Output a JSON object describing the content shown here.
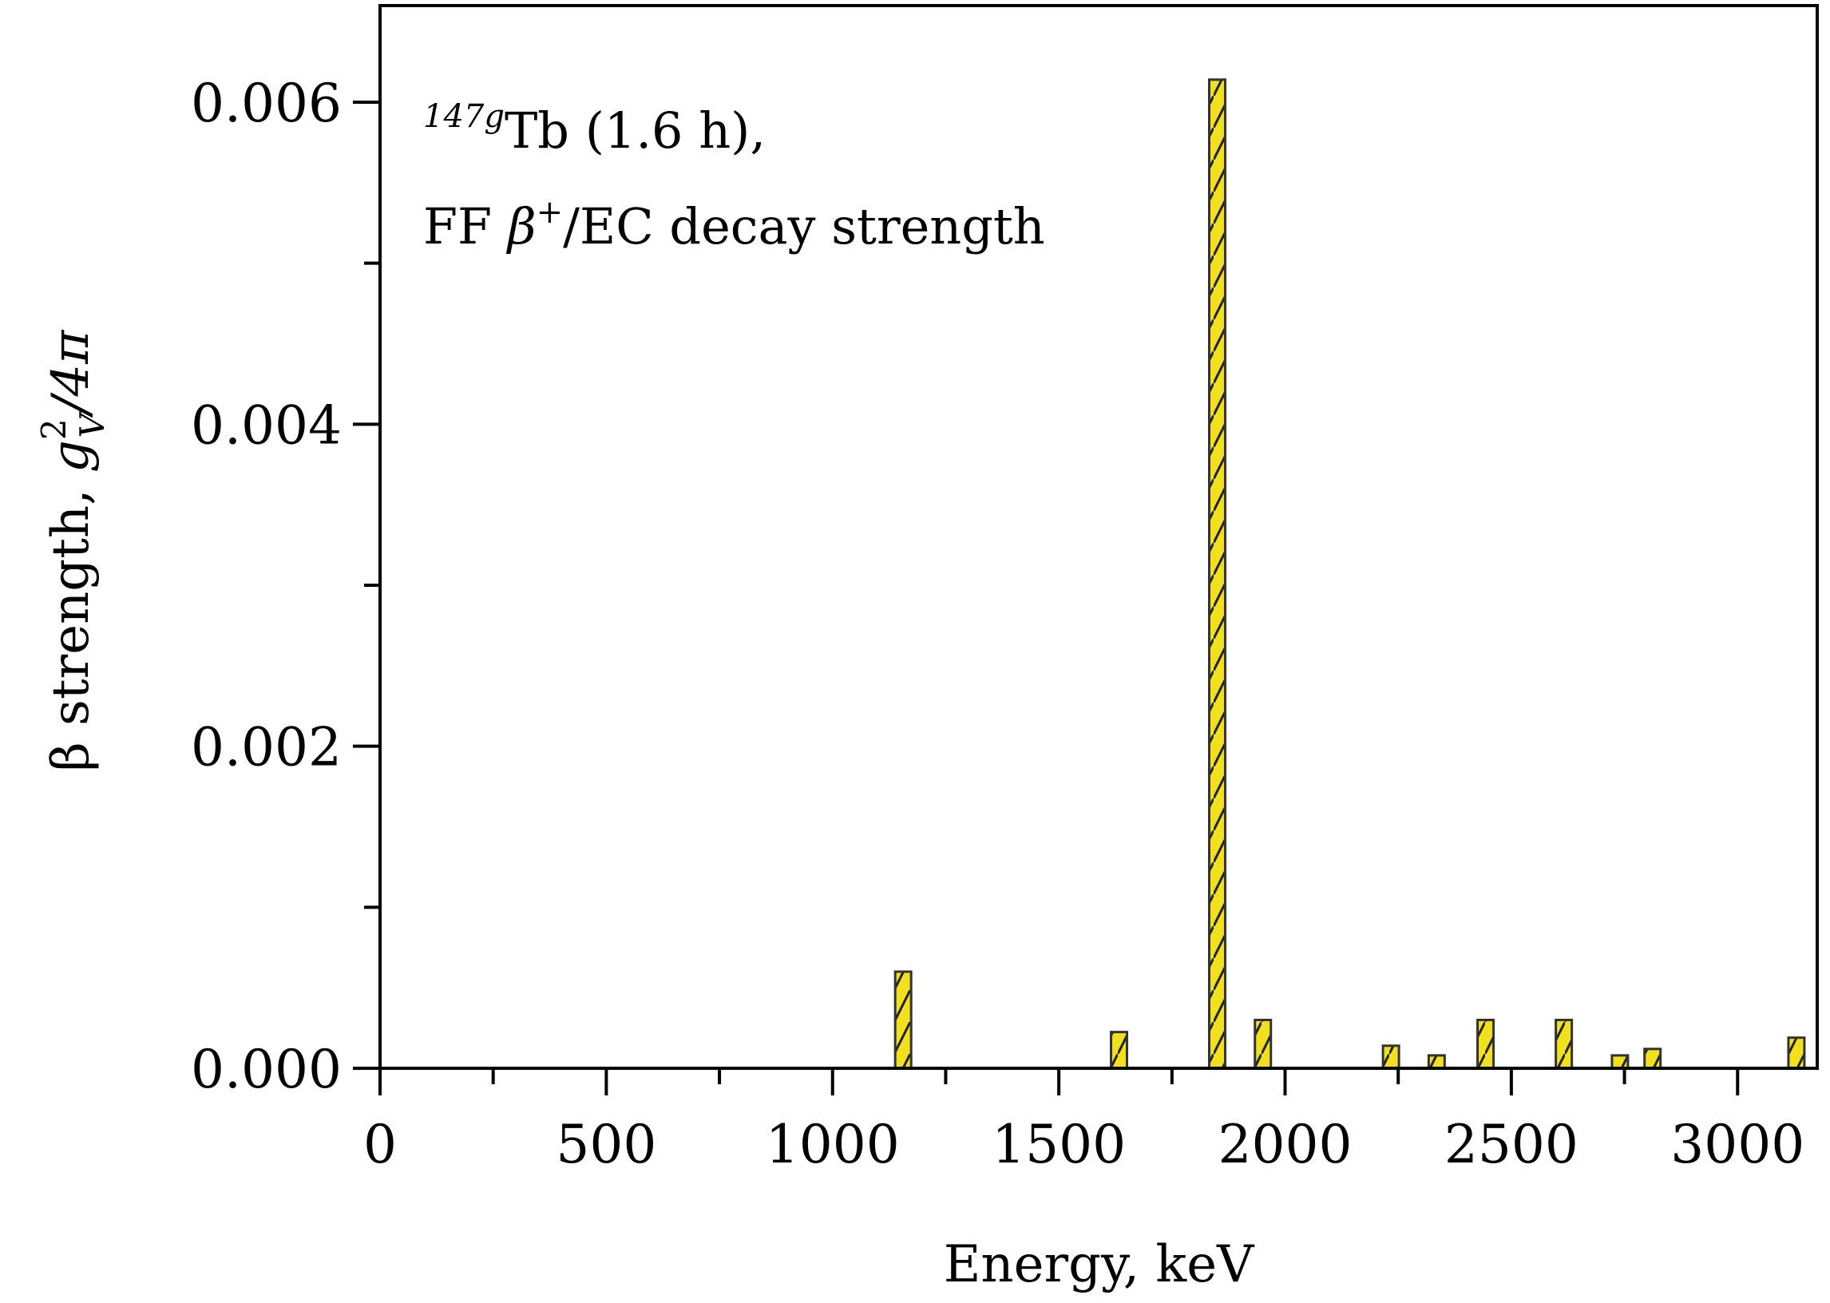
{
  "chart_data": {
    "type": "bar",
    "title": "",
    "annotation": {
      "line1_sup": "147g",
      "line1_main": "Tb (1.6 h),",
      "line2_pre": "FF ",
      "line2_beta": "β",
      "line2_sup": "+",
      "line2_post": "/EC decay strength"
    },
    "xlabel": "Energy, keV",
    "ylabel": {
      "main": "β strength, ",
      "g": "g",
      "sup": "2",
      "sub": "V",
      "tail": "/4π"
    },
    "xlim": [
      0,
      3176
    ],
    "ylim": [
      0,
      0.0066
    ],
    "xticks": [
      0,
      500,
      1000,
      1500,
      2000,
      2500,
      3000
    ],
    "xtick_labels": [
      "0",
      "500",
      "1000",
      "1500",
      "2000",
      "2500",
      "3000"
    ],
    "yticks": [
      0,
      0.002,
      0.004,
      0.006
    ],
    "ytick_labels": [
      "0.000",
      "0.002",
      "0.004",
      "0.006"
    ],
    "grid": false,
    "x": [
      1156,
      1633,
      1850,
      1951,
      2234,
      2335,
      2443,
      2616,
      2740,
      2812,
      3130
    ],
    "values": [
      0.0006,
      0.000225,
      0.00614,
      0.0003,
      0.00014,
      8e-05,
      0.0003,
      0.0003,
      8e-05,
      0.00012,
      0.00019
    ],
    "bar_color": "#f0e020",
    "hatch_color": "#222222"
  }
}
